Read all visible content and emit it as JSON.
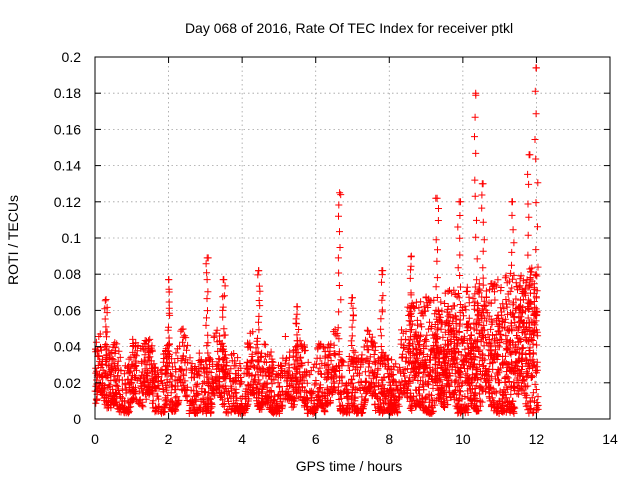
{
  "chart_data": {
    "type": "scatter",
    "title": "Day 068 of 2016, Rate Of TEC Index for receiver ptkl",
    "xlabel": "GPS time / hours",
    "ylabel": "ROTI / TECUs",
    "xlim": [
      0,
      14
    ],
    "ylim": [
      0,
      0.2
    ],
    "xticks": [
      0,
      2,
      4,
      6,
      8,
      10,
      12,
      14
    ],
    "xtick_labels": [
      "0",
      "2",
      "4",
      "6",
      "8",
      "10",
      "12",
      "14"
    ],
    "yticks": [
      0,
      0.02,
      0.04,
      0.06,
      0.08,
      0.1,
      0.12,
      0.14,
      0.16,
      0.18,
      0.2
    ],
    "ytick_labels": [
      "0",
      "0.02",
      "0.04",
      "0.06",
      "0.08",
      "0.1",
      "0.12",
      "0.14",
      "0.16",
      "0.18",
      "0.2"
    ],
    "grid": true,
    "marker": "+",
    "series": [
      {
        "name": "ROTI",
        "color": "#ff0000",
        "x_range": [
          0,
          12.05
        ],
        "baseline_range": [
          0.005,
          0.04
        ],
        "peaks": [
          {
            "x": 0.3,
            "y": 0.066
          },
          {
            "x": 2.0,
            "y": 0.077
          },
          {
            "x": 3.05,
            "y": 0.089
          },
          {
            "x": 3.5,
            "y": 0.077
          },
          {
            "x": 4.45,
            "y": 0.082
          },
          {
            "x": 5.5,
            "y": 0.062
          },
          {
            "x": 6.65,
            "y": 0.125
          },
          {
            "x": 7.0,
            "y": 0.067
          },
          {
            "x": 7.8,
            "y": 0.082
          },
          {
            "x": 8.6,
            "y": 0.09
          },
          {
            "x": 9.3,
            "y": 0.122
          },
          {
            "x": 9.9,
            "y": 0.12
          },
          {
            "x": 10.35,
            "y": 0.18
          },
          {
            "x": 10.55,
            "y": 0.13
          },
          {
            "x": 11.35,
            "y": 0.12
          },
          {
            "x": 11.8,
            "y": 0.146
          },
          {
            "x": 12.0,
            "y": 0.194
          }
        ]
      }
    ]
  }
}
